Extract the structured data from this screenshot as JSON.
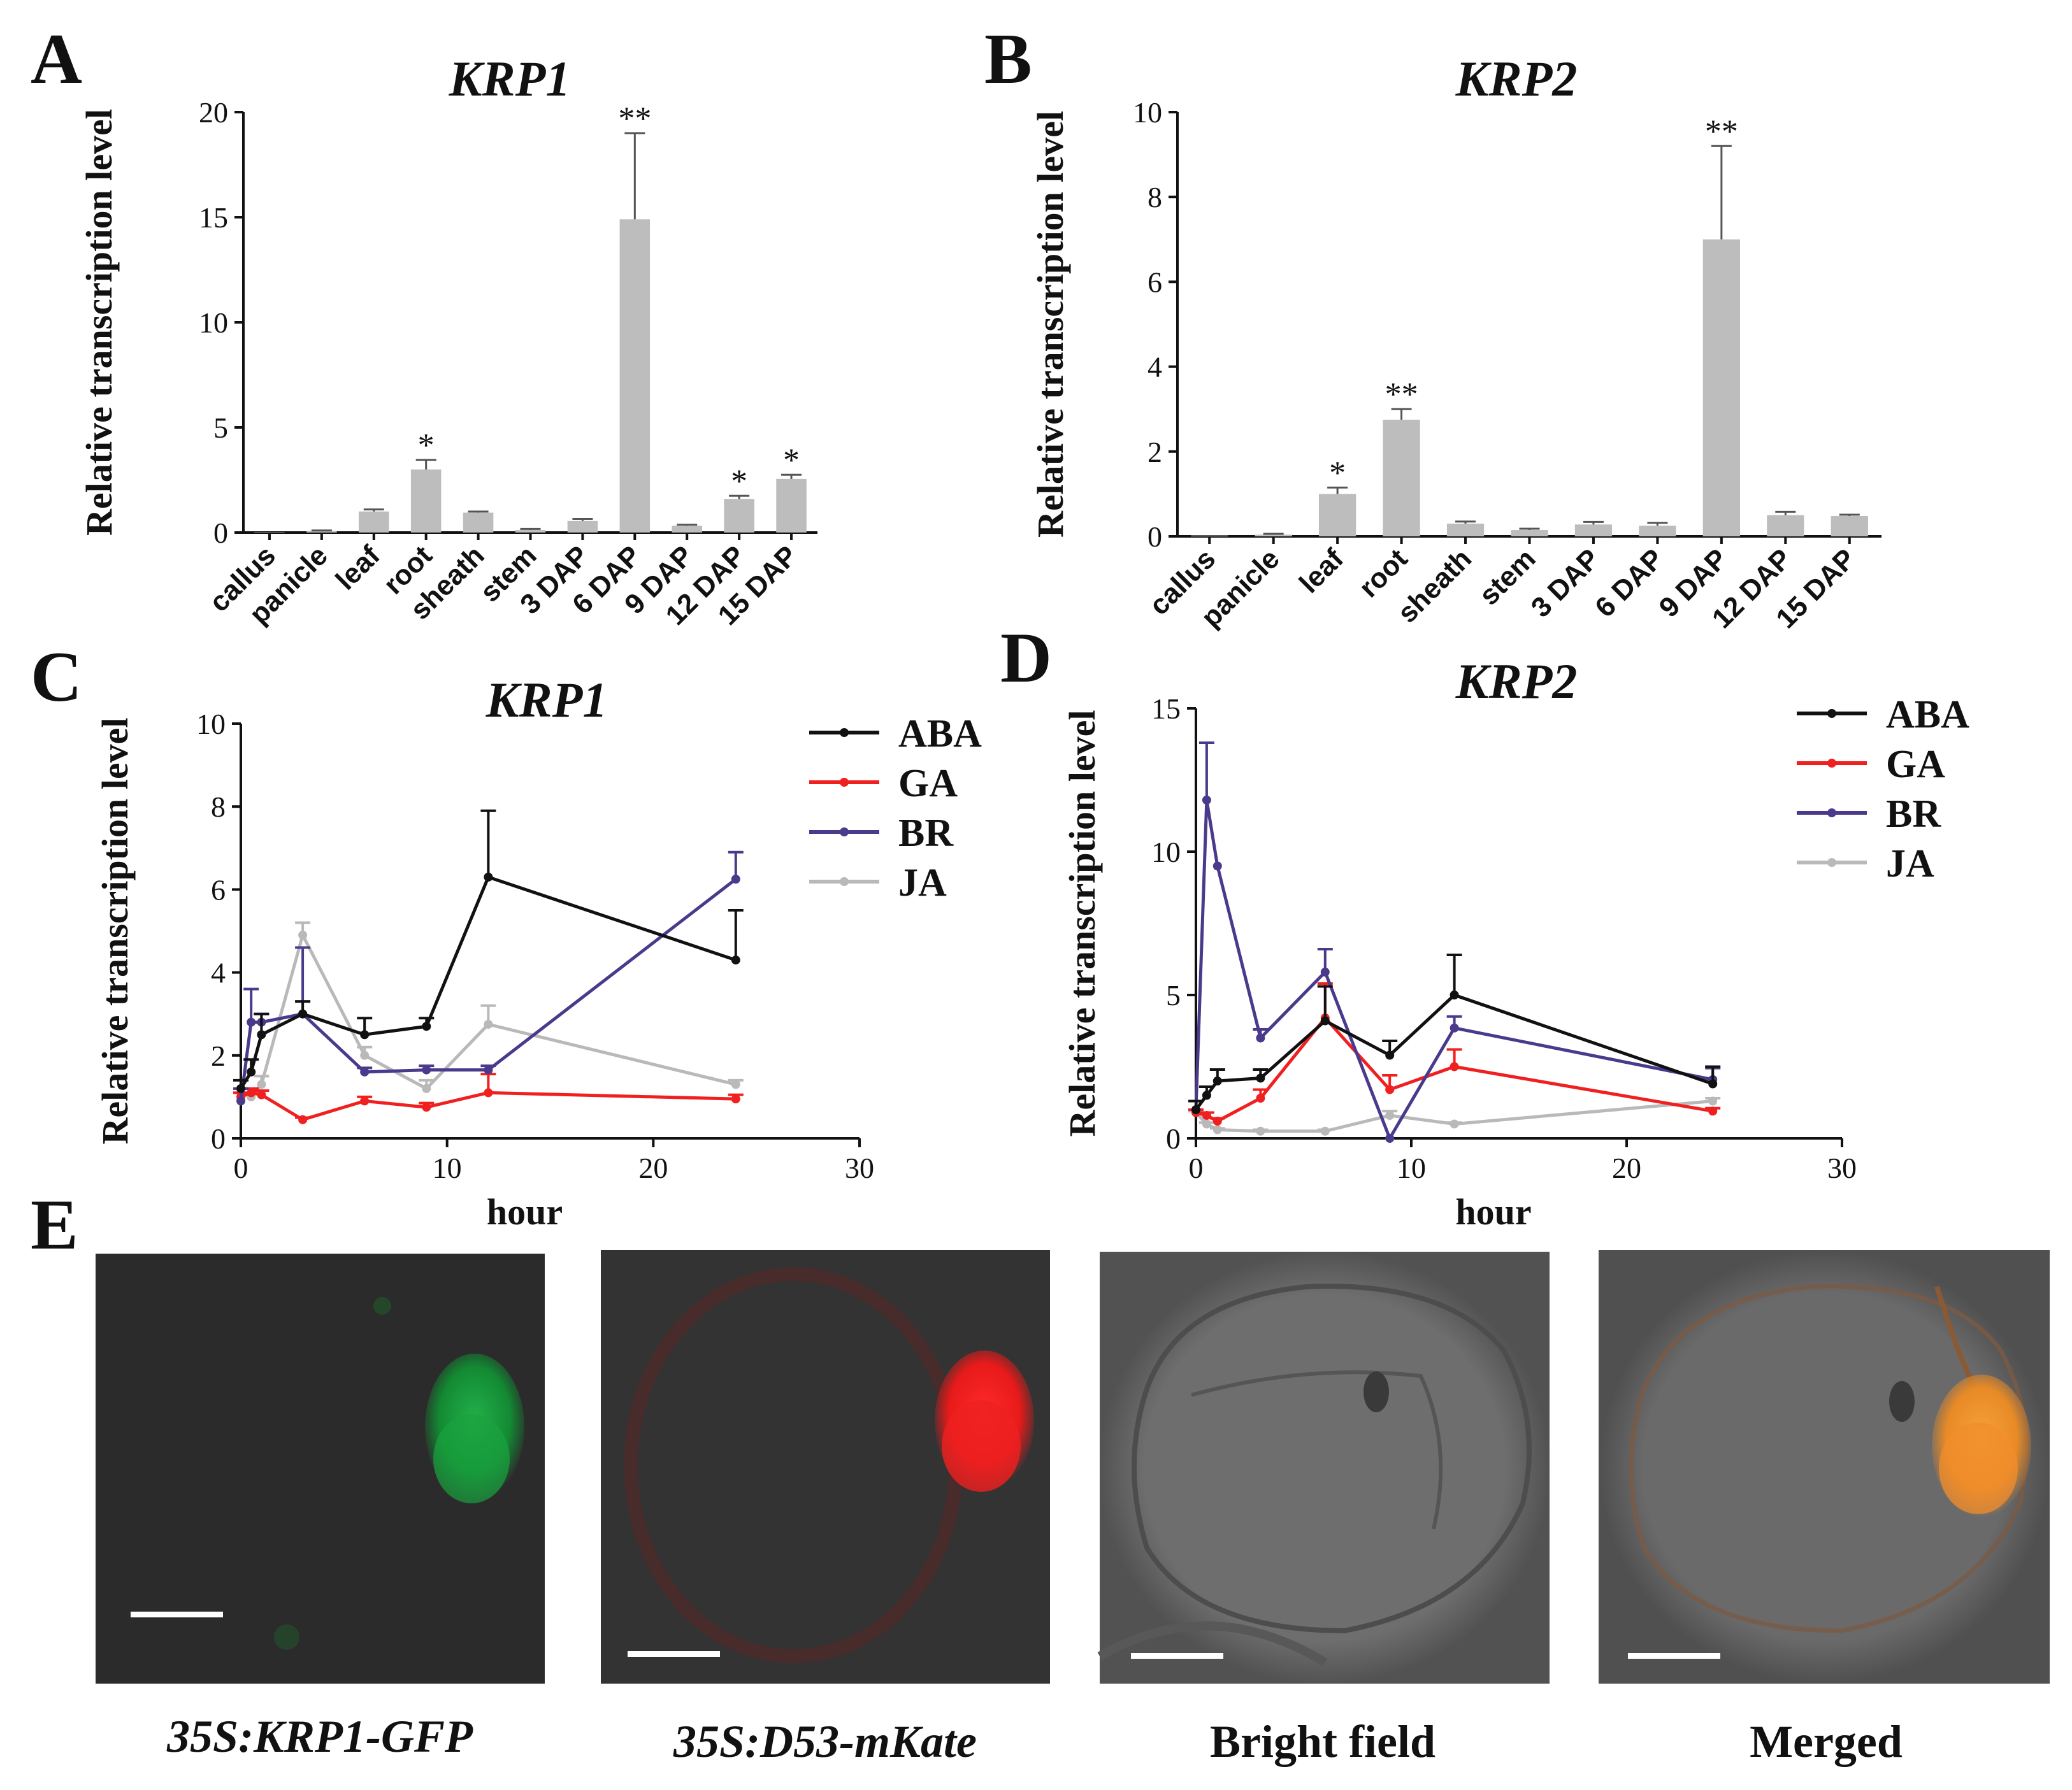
{
  "panel_labels": {
    "a": "A",
    "b": "B",
    "c": "C",
    "d": "D",
    "e": "E"
  },
  "colors": {
    "bar": "#bdbdbd",
    "ABA": "#111111",
    "GA": "#f02020",
    "BR": "#4b3a8c",
    "JA": "#b9b9b9"
  },
  "chart_data": [
    {
      "id": "A",
      "type": "bar",
      "title": "KRP1",
      "xlabel": "",
      "ylabel": "Relative transcription level",
      "ylim": [
        0,
        20
      ],
      "yticks": [
        "0",
        "5",
        "10",
        "15",
        "20"
      ],
      "categories": [
        "callus",
        "panicle",
        "leaf",
        "root",
        "sheath",
        "stem",
        "3 DAP",
        "6 DAP",
        "9 DAP",
        "12 DAP",
        "15 DAP"
      ],
      "values": [
        0.02,
        0.08,
        1.0,
        3.0,
        0.95,
        0.12,
        0.55,
        14.9,
        0.32,
        1.6,
        2.55
      ],
      "errors": [
        0.0,
        0.02,
        0.1,
        0.45,
        0.05,
        0.05,
        0.1,
        4.1,
        0.05,
        0.15,
        0.2
      ],
      "significance": [
        "",
        "",
        "",
        "*",
        "",
        "",
        "",
        "**",
        "",
        "*",
        "*"
      ]
    },
    {
      "id": "B",
      "type": "bar",
      "title": "KRP2",
      "xlabel": "",
      "ylabel": "Relative transcription level",
      "ylim": [
        0,
        10
      ],
      "yticks": [
        "0",
        "2",
        "4",
        "6",
        "8",
        "10"
      ],
      "categories": [
        "callus",
        "panicle",
        "leaf",
        "root",
        "sheath",
        "stem",
        "3 DAP",
        "6 DAP",
        "9 DAP",
        "12 DAP",
        "15 DAP"
      ],
      "values": [
        0.02,
        0.04,
        1.0,
        2.75,
        0.3,
        0.15,
        0.28,
        0.25,
        7.0,
        0.5,
        0.48
      ],
      "errors": [
        0.0,
        0.02,
        0.15,
        0.25,
        0.05,
        0.03,
        0.06,
        0.07,
        2.2,
        0.08,
        0.03
      ],
      "significance": [
        "",
        "",
        "*",
        "**",
        "",
        "",
        "",
        "",
        "**",
        "",
        ""
      ]
    },
    {
      "id": "C",
      "type": "line",
      "title": "KRP1",
      "xlabel": "hour",
      "ylabel": "Relative transcription level",
      "xlim": [
        0,
        30
      ],
      "ylim": [
        0,
        10
      ],
      "xticks": [
        "0",
        "10",
        "20",
        "30"
      ],
      "yticks": [
        "0",
        "2",
        "4",
        "6",
        "8",
        "10"
      ],
      "x": [
        0,
        0.5,
        1,
        3,
        6,
        9,
        12,
        24
      ],
      "series": [
        {
          "name": "ABA",
          "values": [
            1.2,
            1.6,
            2.5,
            3.0,
            2.5,
            2.7,
            6.3,
            4.3
          ],
          "errors": [
            0.2,
            0.3,
            0.5,
            0.3,
            0.4,
            0.2,
            1.6,
            1.2
          ]
        },
        {
          "name": "GA",
          "values": [
            1.0,
            1.1,
            1.05,
            0.45,
            0.9,
            0.75,
            1.1,
            0.95
          ],
          "errors": [
            0.1,
            0.1,
            0.1,
            0.05,
            0.1,
            0.1,
            0.45,
            0.1
          ]
        },
        {
          "name": "BR",
          "values": [
            0.9,
            2.8,
            2.8,
            3.0,
            1.6,
            1.65,
            1.65,
            6.25
          ],
          "errors": [
            0.3,
            0.8,
            0.2,
            1.6,
            0.1,
            0.1,
            0.1,
            0.65
          ]
        },
        {
          "name": "JA",
          "values": [
            1.1,
            1.0,
            1.3,
            4.9,
            2.0,
            1.2,
            2.75,
            1.3
          ],
          "errors": [
            0.1,
            0.1,
            0.2,
            0.3,
            0.2,
            0.2,
            0.45,
            0.1
          ]
        }
      ]
    },
    {
      "id": "D",
      "type": "line",
      "title": "KRP2",
      "xlabel": "hour",
      "ylabel": "Relative transcription level",
      "xlim": [
        0,
        30
      ],
      "ylim": [
        0,
        15
      ],
      "xticks": [
        "0",
        "10",
        "20",
        "30"
      ],
      "yticks": [
        "0",
        "5",
        "10",
        "15"
      ],
      "x": [
        0,
        0.5,
        1,
        3,
        6,
        9,
        12,
        24
      ],
      "series": [
        {
          "name": "ABA",
          "values": [
            1.0,
            1.5,
            2.0,
            2.1,
            4.1,
            2.9,
            5.0,
            1.9
          ],
          "errors": [
            0.3,
            0.3,
            0.4,
            0.3,
            1.2,
            0.5,
            1.4,
            0.6
          ]
        },
        {
          "name": "GA",
          "values": [
            0.9,
            0.8,
            0.6,
            1.4,
            4.2,
            1.7,
            2.5,
            0.95
          ],
          "errors": [
            0.1,
            0.1,
            0.1,
            0.3,
            1.2,
            0.5,
            0.6,
            0.1
          ]
        },
        {
          "name": "BR",
          "values": [
            1.0,
            11.8,
            9.5,
            3.5,
            5.8,
            0,
            3.85,
            2.05
          ],
          "errors": [
            0.3,
            2.0,
            0,
            0.3,
            0.8,
            0,
            0.4,
            0.4
          ]
        },
        {
          "name": "JA",
          "values": [
            0.9,
            0.5,
            0.3,
            0.25,
            0.25,
            0.8,
            0.5,
            1.3
          ],
          "errors": [
            0.05,
            0.05,
            0.05,
            0.05,
            0.05,
            0.15,
            0.05,
            0.1
          ]
        }
      ]
    }
  ],
  "microscopy": {
    "captions": [
      "35S:KRP1-GFP",
      "35S:D53-mKate",
      "Bright field",
      "Merged"
    ]
  }
}
